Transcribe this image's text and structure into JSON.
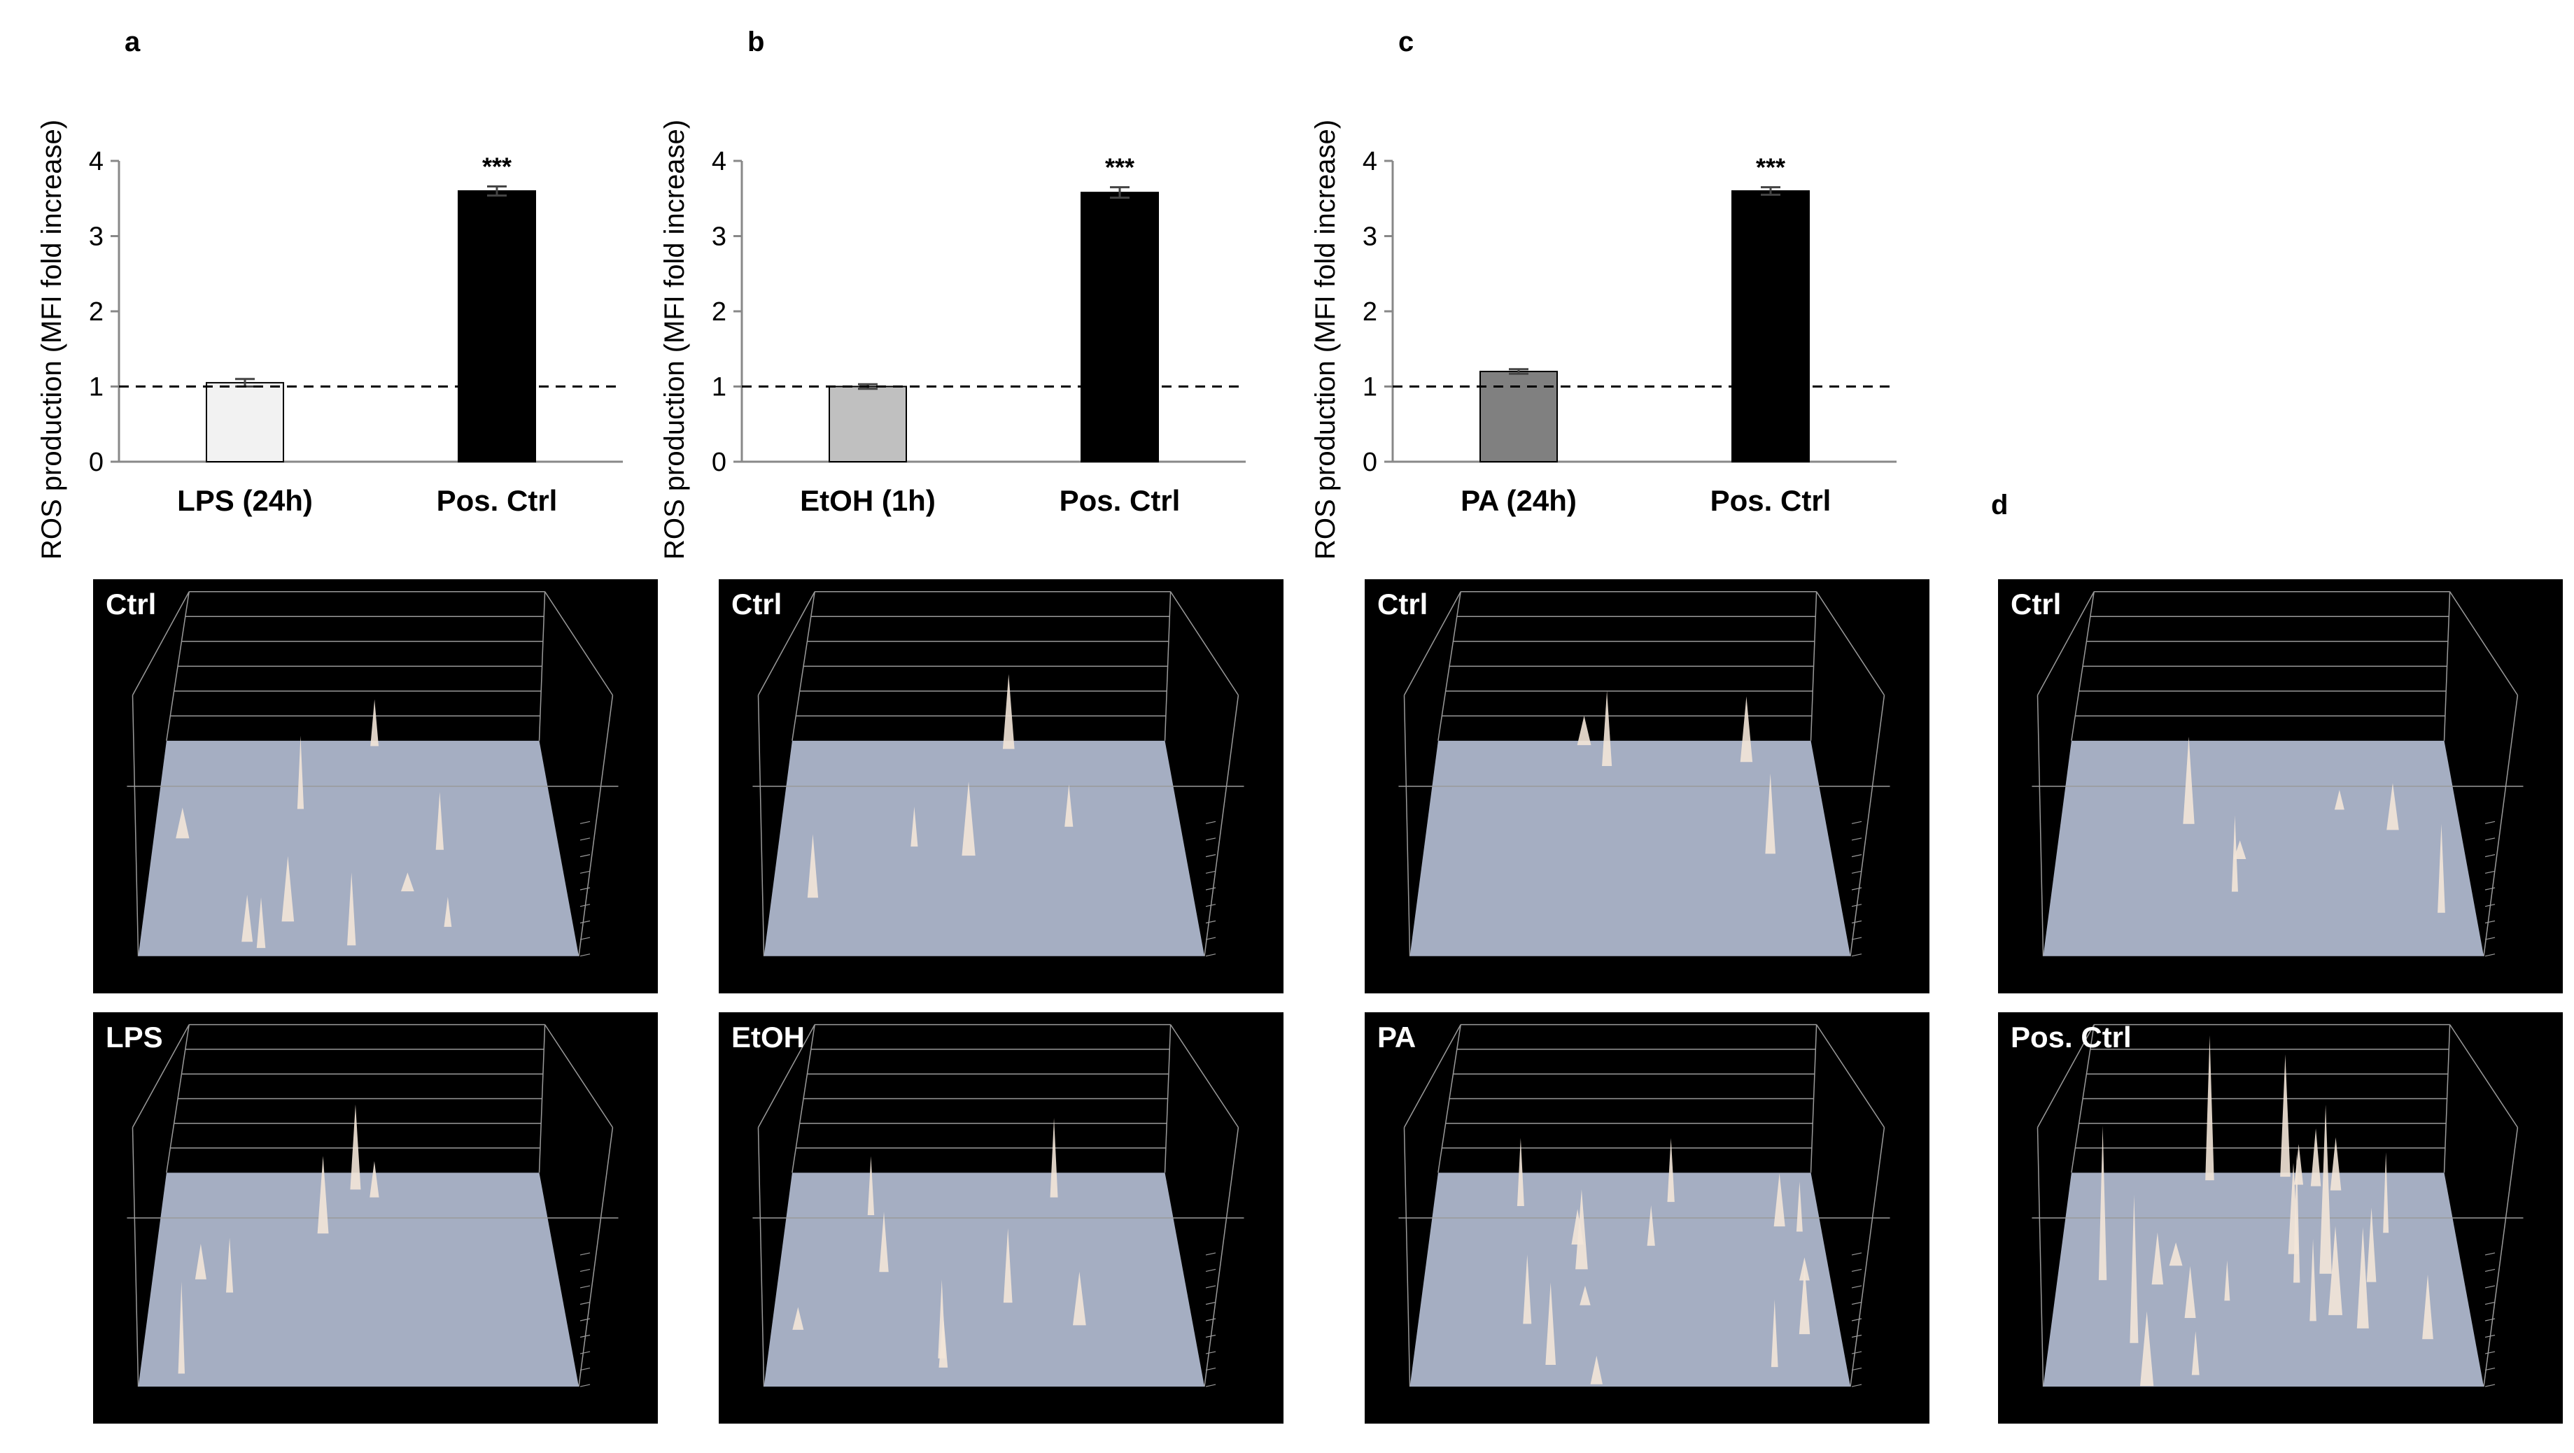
{
  "panel_labels": [
    "a",
    "b",
    "c",
    "d"
  ],
  "colors": {
    "marker": "#000000",
    "axis": "#888888",
    "plate": "#a5aec2",
    "peak": "#f3e6d8"
  },
  "chart_data": [
    {
      "type": "bar",
      "panel": "a",
      "ylabel": "ROS production (MFI fold increase)",
      "categories": [
        "LPS (24h)",
        "Pos. Ctrl"
      ],
      "values": [
        1.05,
        3.6
      ],
      "errors": [
        0.05,
        0.06
      ],
      "bar_colors": [
        "#f2f2f2",
        "#000000"
      ],
      "significance": [
        "",
        "***"
      ],
      "reference_line": 1,
      "ylim": [
        0,
        4
      ],
      "yticks": [
        "0",
        "1",
        "2",
        "3",
        "4"
      ]
    },
    {
      "type": "bar",
      "panel": "b",
      "ylabel": "ROS production (MFI fold increase)",
      "categories": [
        "EtOH (1h)",
        "Pos. Ctrl"
      ],
      "values": [
        1.0,
        3.58
      ],
      "errors": [
        0.03,
        0.07
      ],
      "bar_colors": [
        "#c0c0c0",
        "#000000"
      ],
      "significance": [
        "",
        "***"
      ],
      "reference_line": 1,
      "ylim": [
        0,
        4
      ],
      "yticks": [
        "0",
        "1",
        "2",
        "3",
        "4"
      ]
    },
    {
      "type": "bar",
      "panel": "c",
      "ylabel": "ROS production (MFI fold increase)",
      "categories": [
        "PA (24h)",
        "Pos. Ctrl"
      ],
      "values": [
        1.2,
        3.6
      ],
      "errors": [
        0.03,
        0.05
      ],
      "bar_colors": [
        "#808080",
        "#000000"
      ],
      "significance": [
        "",
        "***"
      ],
      "reference_line": 1,
      "ylim": [
        0,
        4
      ],
      "yticks": [
        "0",
        "1",
        "2",
        "3",
        "4"
      ]
    }
  ],
  "surface_tiles": [
    {
      "label": "Ctrl"
    },
    {
      "label": "Ctrl"
    },
    {
      "label": "Ctrl"
    },
    {
      "label": "Ctrl"
    },
    {
      "label": "LPS"
    },
    {
      "label": "EtOH"
    },
    {
      "label": "PA"
    },
    {
      "label": "Pos. Ctrl"
    }
  ]
}
